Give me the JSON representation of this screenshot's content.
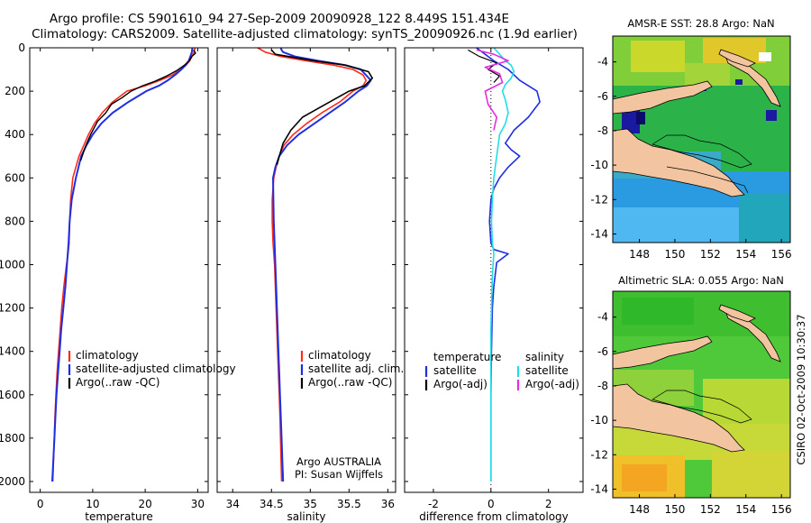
{
  "header": {
    "line1": "Argo profile: CS 5901610_94 27-Sep-2009 20090928_122 8.449S 151.434E",
    "line2": "Climatology: CARS2009. Satellite-adjusted climatology: synTS_20090926.nc (1.9d earlier)"
  },
  "side_label": "CSIRO 02-Oct-2009 10:30:37",
  "colors": {
    "climatology": "#ff2a1a",
    "satellite": "#1f2fe0",
    "argo": "#000000",
    "sat_sal": "#22dde8",
    "argo_sal": "#e82ae0"
  },
  "chart_data": [
    {
      "id": "temperature",
      "type": "line",
      "xlabel": "temperature",
      "ylabel": "",
      "xlim": [
        -2,
        32
      ],
      "ylim": [
        2050,
        0
      ],
      "xticks": [
        0,
        10,
        20,
        30
      ],
      "yticks": [
        0,
        200,
        400,
        600,
        800,
        1000,
        1200,
        1400,
        1600,
        1800,
        2000
      ],
      "legend": [
        "climatology",
        "satellite-adjusted climatology",
        "Argo(..raw -QC)"
      ],
      "series": [
        {
          "name": "climatology",
          "color": "#ff2a1a",
          "width": 1.6,
          "x": [
            29.5,
            29.3,
            28.9,
            28.5,
            27.8,
            26.8,
            25.2,
            22.8,
            20.0,
            16.5,
            13.8,
            11.8,
            10.3,
            9.2,
            8.3,
            7.4,
            6.8,
            6.2,
            5.8,
            5.6,
            5.5,
            5.3,
            5.0,
            4.5,
            4.1,
            3.8,
            3.5,
            3.2,
            3.0,
            2.8,
            2.6,
            2.4
          ],
          "y": [
            0,
            20,
            40,
            60,
            80,
            100,
            125,
            150,
            175,
            200,
            250,
            300,
            350,
            400,
            450,
            500,
            550,
            600,
            700,
            800,
            900,
            950,
            1000,
            1100,
            1200,
            1300,
            1400,
            1500,
            1600,
            1700,
            1850,
            2000
          ]
        },
        {
          "name": "satellite-adjusted climatology",
          "color": "#1f2fe0",
          "width": 2.0,
          "x": [
            29.0,
            28.9,
            28.6,
            28.3,
            27.7,
            26.9,
            25.7,
            24.3,
            22.6,
            20.2,
            16.8,
            13.8,
            11.6,
            10.0,
            8.8,
            7.8,
            6.8,
            6.0,
            5.6,
            5.4,
            5.1,
            4.8,
            4.4,
            4.0,
            3.7,
            3.4,
            3.1,
            2.9,
            2.7,
            2.5,
            2.3
          ],
          "y": [
            0,
            20,
            40,
            60,
            80,
            100,
            125,
            150,
            175,
            200,
            250,
            300,
            350,
            400,
            450,
            500,
            600,
            700,
            800,
            900,
            1000,
            1100,
            1200,
            1300,
            1400,
            1500,
            1600,
            1700,
            1800,
            1900,
            2000
          ]
        },
        {
          "name": "Argo(..raw -QC)",
          "color": "#000000",
          "width": 1.4,
          "x": [
            29.2,
            29.6,
            28.9,
            28.4,
            27.5,
            26.0,
            24.1,
            21.8,
            19.5,
            17.3,
            15.6,
            13.6,
            12.5,
            10.9,
            9.6,
            8.7,
            7.7
          ],
          "y": [
            10,
            25,
            40,
            60,
            80,
            105,
            130,
            155,
            175,
            200,
            230,
            260,
            300,
            340,
            400,
            450,
            520
          ]
        }
      ]
    },
    {
      "id": "salinity",
      "type": "line",
      "xlabel": "salinity",
      "ylabel": "",
      "xlim": [
        33.8,
        36.1
      ],
      "ylim": [
        2050,
        0
      ],
      "xticks": [
        34,
        34.5,
        35,
        35.5,
        36
      ],
      "yticks": [
        0,
        200,
        400,
        600,
        800,
        1000,
        1200,
        1400,
        1600,
        1800,
        2000
      ],
      "legend": [
        "climatology",
        "satellite adj. clim.",
        "Argo(..raw -QC)"
      ],
      "annotation": [
        "Argo AUSTRALIA",
        "PI: Susan Wijffels"
      ],
      "series": [
        {
          "name": "climatology",
          "color": "#ff2a1a",
          "width": 1.6,
          "x": [
            34.32,
            34.42,
            34.62,
            34.95,
            35.3,
            35.55,
            35.68,
            35.72,
            35.68,
            35.55,
            35.38,
            35.15,
            34.95,
            34.78,
            34.66,
            34.6,
            34.56,
            34.53,
            34.51,
            34.51,
            34.52,
            34.54,
            34.56,
            34.58,
            34.6,
            34.61,
            34.62,
            34.63
          ],
          "y": [
            0,
            20,
            40,
            60,
            80,
            100,
            125,
            150,
            175,
            200,
            250,
            300,
            350,
            400,
            450,
            500,
            550,
            600,
            700,
            800,
            900,
            1000,
            1200,
            1400,
            1600,
            1700,
            1850,
            2000
          ]
        },
        {
          "name": "satellite adj. clim.",
          "color": "#1f2fe0",
          "width": 2.0,
          "x": [
            34.62,
            34.63,
            34.65,
            34.8,
            35.1,
            35.45,
            35.65,
            35.78,
            35.73,
            35.62,
            35.45,
            35.25,
            35.05,
            34.85,
            34.7,
            34.6,
            34.55,
            34.52,
            34.53,
            34.55,
            34.57,
            34.59,
            34.6,
            34.61,
            34.62,
            34.63,
            34.64,
            34.65
          ],
          "y": [
            0,
            10,
            20,
            40,
            60,
            80,
            100,
            150,
            175,
            200,
            250,
            300,
            350,
            400,
            450,
            500,
            550,
            600,
            800,
            1000,
            1200,
            1400,
            1500,
            1600,
            1700,
            1800,
            1900,
            2000
          ]
        },
        {
          "name": "Argo(..raw -QC)",
          "color": "#000000",
          "width": 1.6,
          "x": [
            34.5,
            34.55,
            35.05,
            35.45,
            35.75,
            35.8,
            35.7,
            35.5,
            35.3,
            35.1,
            34.9,
            34.75,
            34.65,
            34.6,
            34.57
          ],
          "y": [
            10,
            30,
            60,
            80,
            110,
            140,
            175,
            200,
            240,
            280,
            320,
            380,
            440,
            500,
            540
          ]
        }
      ]
    },
    {
      "id": "difference",
      "type": "line",
      "xlabel": "difference from climatology",
      "ylabel": "",
      "xlim": [
        -3,
        3.2
      ],
      "ylim": [
        2050,
        0
      ],
      "xticks": [
        -2,
        0,
        2
      ],
      "yticks": [
        0,
        200,
        400,
        600,
        800,
        1000,
        1200,
        1400,
        1600,
        1800,
        2000
      ],
      "legend_temperature_title": "temperature",
      "legend_salinity_title": "salinity",
      "legend_temperature": [
        "satellite",
        "Argo(-adj)"
      ],
      "legend_salinity": [
        "satellite",
        "Argo(-adj)"
      ],
      "series": [
        {
          "name": "satellite",
          "group": "temperature",
          "color": "#1f2fe0",
          "width": 1.6,
          "x": [
            -0.5,
            -0.2,
            0.1,
            0.6,
            1.0,
            1.6,
            1.7,
            1.3,
            0.8,
            0.5,
            0.7,
            1.0,
            0.6,
            0.3,
            0.1,
            0.0,
            -0.05,
            0.0,
            0.1,
            0.6,
            0.2,
            0.1,
            0.05,
            0.02,
            0.0,
            0.0
          ],
          "y": [
            0,
            30,
            60,
            100,
            150,
            200,
            250,
            320,
            380,
            440,
            470,
            500,
            550,
            600,
            650,
            700,
            800,
            900,
            930,
            950,
            990,
            1100,
            1200,
            1400,
            1600,
            2000
          ]
        },
        {
          "name": "satellite",
          "group": "salinity",
          "color": "#22dde8",
          "width": 1.6,
          "x": [
            0.1,
            0.3,
            0.5,
            0.7,
            0.8,
            0.7,
            0.5,
            0.4,
            0.5,
            0.6,
            0.5,
            0.3,
            0.2,
            0.1,
            0.05,
            0.02,
            0.05,
            0.1,
            0.05,
            0.0,
            0.0
          ],
          "y": [
            0,
            30,
            60,
            80,
            110,
            140,
            170,
            200,
            240,
            300,
            350,
            400,
            500,
            600,
            700,
            800,
            900,
            950,
            1050,
            1300,
            2000
          ]
        },
        {
          "name": "Argo(-adj)",
          "group": "temperature",
          "color": "#000000",
          "width": 1.2,
          "x": [
            -0.8,
            -0.4,
            0.2,
            -0.1,
            0.3,
            0.1
          ],
          "y": [
            10,
            40,
            70,
            100,
            130,
            160
          ]
        },
        {
          "name": "Argo(-adj)",
          "group": "salinity",
          "color": "#e82ae0",
          "width": 1.6,
          "x": [
            -0.5,
            0.1,
            0.6,
            -0.2,
            0.3,
            0.4,
            -0.2,
            -0.1,
            0.2,
            0.1
          ],
          "y": [
            10,
            30,
            60,
            90,
            120,
            160,
            200,
            260,
            320,
            380
          ]
        }
      ]
    },
    {
      "id": "sst-map",
      "type": "heatmap",
      "title": "AMSR-E SST: 28.8 Argo: NaN",
      "xlim": [
        146.5,
        156.5
      ],
      "ylim": [
        -14.5,
        -2.5
      ],
      "xticks": [
        148,
        150,
        152,
        154,
        156
      ],
      "yticks": [
        -4,
        -6,
        -8,
        -10,
        -12,
        -14
      ]
    },
    {
      "id": "sla-map",
      "type": "heatmap",
      "title": "Altimetric SLA: 0.055 Argo: NaN",
      "xlim": [
        146.5,
        156.5
      ],
      "ylim": [
        -14.5,
        -2.5
      ],
      "xticks": [
        148,
        150,
        152,
        154,
        156
      ],
      "yticks": [
        -4,
        -6,
        -8,
        -10,
        -12,
        -14
      ]
    }
  ]
}
